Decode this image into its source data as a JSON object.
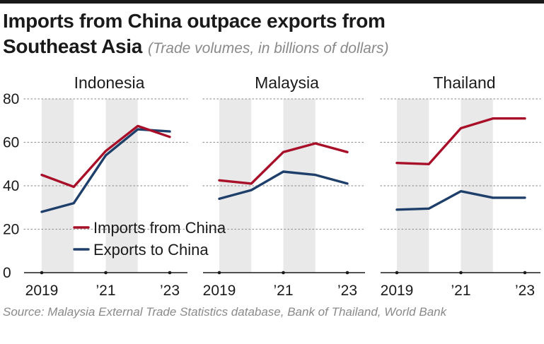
{
  "title_line1": "Imports from China outpace exports from",
  "title_line2": "Southeast Asia",
  "subtitle": "(Trade volumes, in billions of dollars)",
  "source": "Source: Malaysia External Trade Statistics database, Bank of Thailand, World Bank",
  "colors": {
    "imports": "#a8102a",
    "exports": "#1f3f6b",
    "shade": "#e9e9e9",
    "grid": "#9a9a9a"
  },
  "chart_data": {
    "type": "line",
    "title": "Imports from China outpace exports from Southeast Asia",
    "ylabel": "Trade volumes, in billions of dollars",
    "ylim": [
      0,
      80
    ],
    "yticks": [
      0,
      20,
      40,
      60,
      80
    ],
    "x": [
      2019,
      2020,
      2021,
      2022,
      2023
    ],
    "xtick_labels": [
      "2019",
      "’21",
      "’23"
    ],
    "shaded_years": [
      2019,
      2021
    ],
    "legend": [
      {
        "name": "Imports from China",
        "color": "#a8102a"
      },
      {
        "name": "Exports to China",
        "color": "#1f3f6b"
      }
    ],
    "panels": [
      {
        "name": "Indonesia",
        "series": [
          {
            "name": "Imports from China",
            "values": [
              45,
              39.5,
              56,
              67.5,
              62.5
            ]
          },
          {
            "name": "Exports to China",
            "values": [
              28,
              32,
              54,
              66,
              65
            ]
          }
        ]
      },
      {
        "name": "Malaysia",
        "series": [
          {
            "name": "Imports from China",
            "values": [
              42.5,
              41,
              55.5,
              59.5,
              55.5
            ]
          },
          {
            "name": "Exports to China",
            "values": [
              34,
              38,
              46.5,
              45,
              41
            ]
          }
        ]
      },
      {
        "name": "Thailand",
        "series": [
          {
            "name": "Imports from China",
            "values": [
              50.5,
              50,
              66.5,
              71,
              71
            ]
          },
          {
            "name": "Exports to China",
            "values": [
              29,
              29.5,
              37.5,
              34.5,
              34.5
            ]
          }
        ]
      }
    ]
  }
}
